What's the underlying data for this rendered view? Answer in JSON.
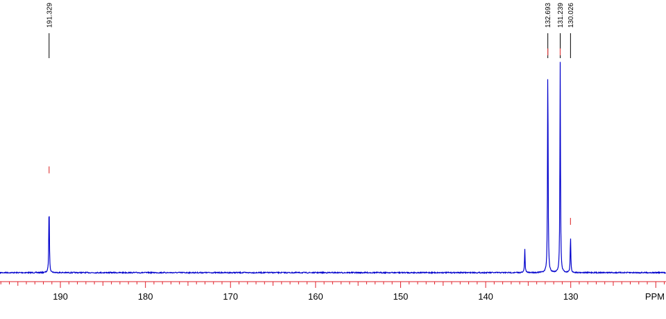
{
  "chart_data": {
    "type": "line",
    "xlabel": "PPM",
    "xlim": [
      197.1,
      118.8
    ],
    "x_reversed": true,
    "ticks": [
      190,
      180,
      170,
      160,
      150,
      140,
      130
    ],
    "tick_labels": [
      "190",
      "180",
      "170",
      "160",
      "150",
      "140",
      "130"
    ],
    "baseline": 0,
    "ylim": [
      0,
      1
    ],
    "peaks": [
      {
        "ppm": 191.329,
        "height": 0.33,
        "label": "191.329"
      },
      {
        "ppm": 135.4,
        "height": 0.11,
        "label": ""
      },
      {
        "ppm": 132.693,
        "height": 1.0,
        "label": "132.693"
      },
      {
        "ppm": 131.239,
        "height": 0.98,
        "label": "131.239"
      },
      {
        "ppm": 130.026,
        "height": 0.17,
        "label": "130.026"
      }
    ],
    "integral_markers": [
      {
        "ppm": 191.329,
        "level": 0.45
      },
      {
        "ppm": 132.693,
        "level": 1.0
      },
      {
        "ppm": 131.239,
        "level": 1.0
      },
      {
        "ppm": 130.026,
        "level": 0.21
      }
    ],
    "colors": {
      "spectrum": "#0000cc",
      "axis": "#e0202a",
      "integral": "#e04040",
      "label_line": "#000000"
    }
  }
}
